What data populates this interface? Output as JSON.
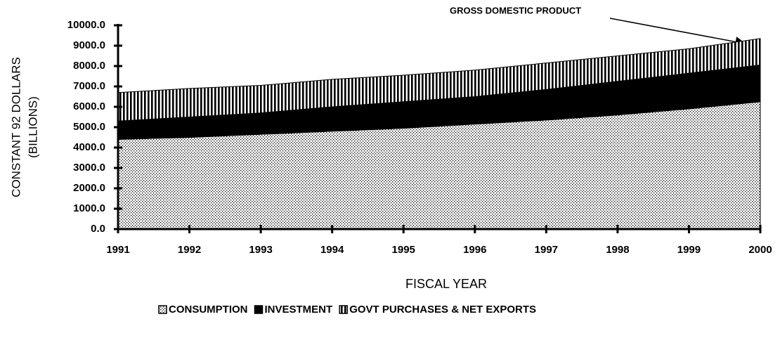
{
  "chart_data": {
    "type": "stacked-area",
    "annotation": "GROSS DOMESTIC PRODUCT",
    "x_label": "FISCAL YEAR",
    "y_label": [
      "CONSTANT 92 DOLLARS",
      "(BILLIONS)"
    ],
    "categories": [
      "1991",
      "1992",
      "1993",
      "1994",
      "1995",
      "1996",
      "1997",
      "1998",
      "1999",
      "2000"
    ],
    "series": [
      {
        "name": "CONSUMPTION",
        "color": "#000000",
        "pattern": "dots",
        "values": [
          4400,
          4500,
          4650,
          4800,
          4950,
          5150,
          5350,
          5600,
          5900,
          6250
        ]
      },
      {
        "name": "INVESTMENT",
        "color": "#000000",
        "pattern": "solid",
        "values": [
          900,
          1000,
          1050,
          1200,
          1300,
          1350,
          1500,
          1650,
          1750,
          1800
        ]
      },
      {
        "name": "GOVT PURCHASES & NET EXPORTS",
        "color": "#000000",
        "pattern": "vertical-stripes",
        "values": [
          1400,
          1400,
          1350,
          1350,
          1300,
          1300,
          1300,
          1250,
          1200,
          1300
        ]
      }
    ],
    "ylim": [
      0,
      10000
    ],
    "yticks": [
      {
        "value": 0,
        "label": "0.0"
      },
      {
        "value": 1000,
        "label": "1000.0"
      },
      {
        "value": 2000,
        "label": "2000.0"
      },
      {
        "value": 3000,
        "label": "3000.0"
      },
      {
        "value": 4000,
        "label": "4000.0"
      },
      {
        "value": 5000,
        "label": "5000.0"
      },
      {
        "value": 6000,
        "label": "6000.0"
      },
      {
        "value": 7000,
        "label": "7000.0"
      },
      {
        "value": 8000,
        "label": "8000.0"
      },
      {
        "value": 9000,
        "label": "9000.0"
      },
      {
        "value": 10000,
        "label": "10000.0"
      }
    ],
    "legend": "bottom"
  }
}
